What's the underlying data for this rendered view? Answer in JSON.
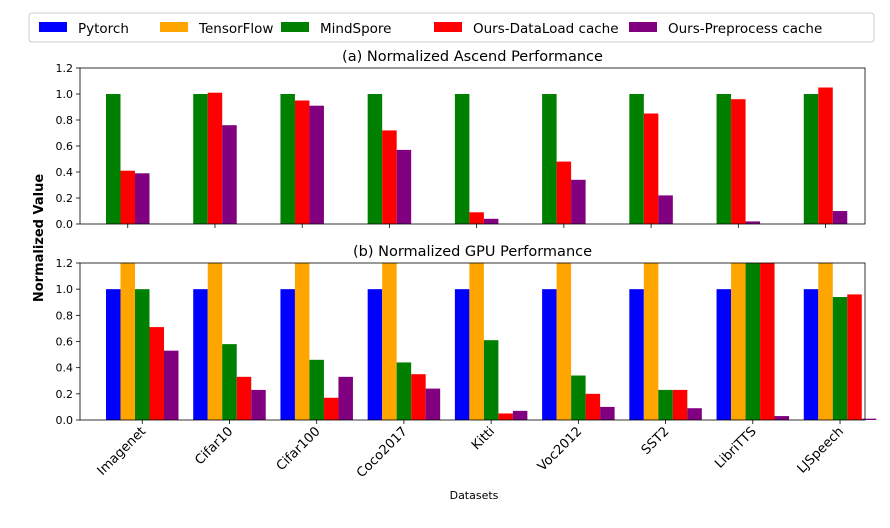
{
  "chart_data": {
    "type": "bar",
    "legend": {
      "placement": "top",
      "entries": [
        {
          "name": "Pytorch",
          "color": "#0000ff"
        },
        {
          "name": "TensorFlow",
          "color": "#ffa500"
        },
        {
          "name": "MindSpore",
          "color": "#008000"
        },
        {
          "name": "Ours-DataLoad cache",
          "color": "#ff0000"
        },
        {
          "name": "Ours-Preprocess cache",
          "color": "#800080"
        }
      ]
    },
    "ylabel": "Normalized Value",
    "xlabel": "Datasets",
    "categories": [
      "Imagenet",
      "Cifar10",
      "Cifar100",
      "Coco2017",
      "Kitti",
      "Voc2012",
      "SST2",
      "LibriTTS",
      "LJSpeech"
    ],
    "yticks": [
      "0.0",
      "0.2",
      "0.4",
      "0.6",
      "0.8",
      "1.0",
      "1.2"
    ],
    "panels": [
      {
        "title": "(a) Normalized Ascend Performance",
        "ylim": [
          0,
          1.2
        ],
        "series": [
          {
            "name": "MindSpore",
            "values": [
              1.0,
              1.0,
              1.0,
              1.0,
              1.0,
              1.0,
              1.0,
              1.0,
              1.0
            ]
          },
          {
            "name": "Ours-DataLoad cache",
            "values": [
              0.41,
              1.01,
              0.95,
              0.72,
              0.09,
              0.48,
              0.85,
              0.96,
              1.05
            ]
          },
          {
            "name": "Ours-Preprocess cache",
            "values": [
              0.39,
              0.76,
              0.91,
              0.57,
              0.04,
              0.34,
              0.22,
              0.02,
              0.1
            ]
          }
        ]
      },
      {
        "title": "(b) Normalized GPU Performance",
        "ylim": [
          0,
          1.2
        ],
        "series": [
          {
            "name": "Pytorch",
            "values": [
              1.0,
              1.0,
              1.0,
              1.0,
              1.0,
              1.0,
              1.0,
              1.0,
              1.0
            ]
          },
          {
            "name": "TensorFlow",
            "values": [
              1.2,
              1.2,
              1.2,
              1.2,
              1.2,
              1.2,
              1.2,
              1.2,
              1.2
            ]
          },
          {
            "name": "MindSpore",
            "values": [
              1.0,
              0.58,
              0.46,
              0.44,
              0.61,
              0.34,
              0.23,
              1.2,
              0.94
            ]
          },
          {
            "name": "Ours-DataLoad cache",
            "values": [
              0.71,
              0.33,
              0.17,
              0.35,
              0.05,
              0.2,
              0.23,
              1.2,
              0.96
            ]
          },
          {
            "name": "Ours-Preprocess cache",
            "values": [
              0.53,
              0.23,
              0.33,
              0.24,
              0.07,
              0.1,
              0.09,
              0.03,
              0.01
            ]
          }
        ]
      }
    ]
  }
}
